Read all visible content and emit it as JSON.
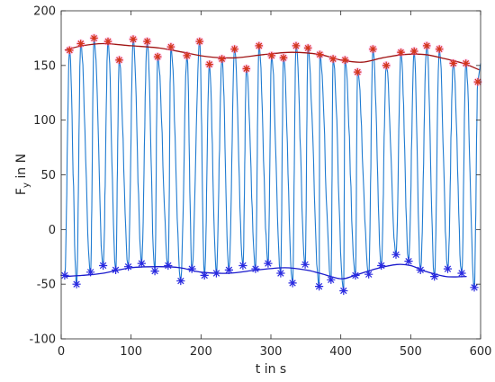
{
  "chart_data": {
    "type": "line",
    "xlabel": "t in s",
    "ylabel": "F_y in N",
    "ylabel_main": "F",
    "ylabel_sub": "y",
    "ylabel_rest": " in N",
    "xlim": [
      0,
      600
    ],
    "ylim": [
      -100,
      200
    ],
    "xticks": [
      0,
      100,
      200,
      300,
      400,
      500,
      600
    ],
    "yticks": [
      -100,
      -50,
      0,
      50,
      100,
      150,
      200
    ],
    "grid": false,
    "colors": {
      "signal": "#1f7bd1",
      "upper_envelope": "#a01414",
      "lower_envelope": "#1a1acc",
      "peak_marker": "#d4351c",
      "peak_halo": "#ff7fe0",
      "valley_marker": "#2a2ae0"
    },
    "series": [
      {
        "role": "peaks",
        "marker": "star",
        "x": [
          12,
          28,
          47,
          67,
          83,
          103,
          123,
          138,
          157,
          180,
          198,
          212,
          230,
          248,
          265,
          283,
          301,
          318,
          336,
          353,
          370,
          389,
          406,
          424,
          446,
          465,
          486,
          505,
          523,
          541,
          561,
          579,
          596
        ],
        "y": [
          164,
          170,
          175,
          172,
          155,
          174,
          172,
          158,
          167,
          159,
          172,
          151,
          156,
          165,
          147,
          168,
          159,
          157,
          168,
          166,
          160,
          156,
          155,
          144,
          165,
          150,
          162,
          163,
          168,
          165,
          152,
          152,
          135
        ]
      },
      {
        "role": "valleys",
        "marker": "asterisk",
        "x": [
          5,
          22,
          42,
          60,
          78,
          96,
          115,
          134,
          153,
          171,
          187,
          205,
          222,
          240,
          260,
          278,
          296,
          314,
          331,
          349,
          369,
          386,
          404,
          421,
          440,
          458,
          479,
          497,
          514,
          534,
          553,
          573,
          591
        ],
        "y": [
          -42,
          -50,
          -39,
          -33,
          -37,
          -34,
          -31,
          -38,
          -33,
          -47,
          -36,
          -42,
          -40,
          -37,
          -33,
          -36,
          -31,
          -40,
          -49,
          -32,
          -52,
          -46,
          -56,
          -42,
          -41,
          -33,
          -23,
          -29,
          -37,
          -43,
          -36,
          -40,
          -53
        ]
      },
      {
        "role": "upper-envelope",
        "x": [
          5,
          30,
          60,
          100,
          140,
          175,
          210,
          250,
          290,
          330,
          370,
          400,
          430,
          460,
          490,
          520,
          550,
          575,
          598
        ],
        "y": [
          164,
          168,
          170,
          168,
          166,
          162,
          158,
          157,
          160,
          162,
          160,
          155,
          153,
          157,
          160,
          160,
          156,
          152,
          146
        ]
      },
      {
        "role": "lower-envelope",
        "x": [
          5,
          30,
          60,
          100,
          140,
          170,
          200,
          240,
          280,
          320,
          350,
          370,
          400,
          420,
          450,
          480,
          500,
          520,
          550,
          580
        ],
        "y": [
          -43,
          -42,
          -40,
          -35,
          -34,
          -35,
          -39,
          -40,
          -37,
          -35,
          -37,
          -40,
          -45,
          -42,
          -36,
          -32,
          -33,
          -38,
          -43,
          -43
        ]
      }
    ]
  }
}
